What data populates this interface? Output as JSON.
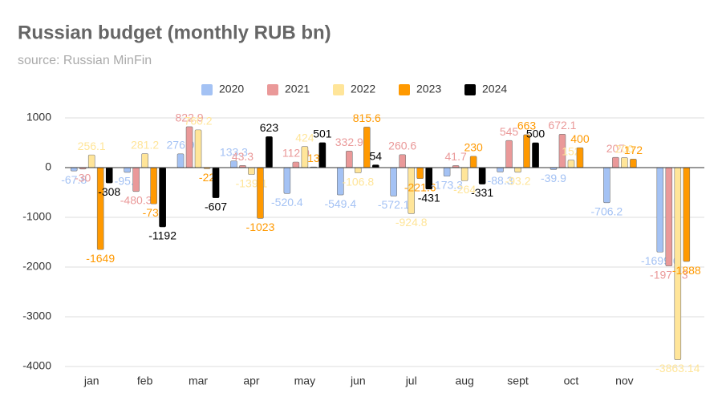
{
  "chart_data": {
    "type": "bar",
    "title": "Russian budget (monthly RUB bn)",
    "subtitle": "source: Russian MinFin",
    "categories": [
      "jan",
      "feb",
      "mar",
      "apr",
      "may",
      "jun",
      "jul",
      "aug",
      "sept",
      "oct",
      "nov",
      null
    ],
    "series": [
      {
        "name": "2020",
        "color": "#a4c2f4",
        "values": [
          -67.8,
          -95.5,
          276.9,
          133.3,
          -520.4,
          -549.4,
          -572.1,
          -173.3,
          -88.3,
          -39.9,
          -706.2,
          -1699.6
        ]
      },
      {
        "name": "2021",
        "color": "#ea9999",
        "values": [
          -30,
          -480.3,
          822.9,
          43.3,
          112.9,
          332.9,
          260.6,
          41.7,
          545,
          672.1,
          207,
          -1977.3
        ]
      },
      {
        "name": "2022",
        "color": "#ffe599",
        "values": [
          256.1,
          281.2,
          760.2,
          -139.1,
          424,
          -106.8,
          -924.8,
          -264,
          -93.2,
          152,
          200,
          -3863.14
        ]
      },
      {
        "name": "2023",
        "color": "#ff9900",
        "values": [
          -1649,
          -730,
          -22,
          -1023,
          13,
          815.6,
          -221.6,
          230,
          663,
          400,
          172,
          -1888
        ]
      },
      {
        "name": "2024",
        "color": "#000000",
        "values": [
          -308,
          -1192,
          -607,
          623,
          501,
          54,
          -431,
          -331,
          500,
          null,
          null,
          null
        ]
      }
    ],
    "ylim": [
      -4000,
      1000
    ],
    "yticks": [
      -4000,
      -3000,
      -2000,
      -1000,
      0,
      1000
    ],
    "grid": true
  }
}
